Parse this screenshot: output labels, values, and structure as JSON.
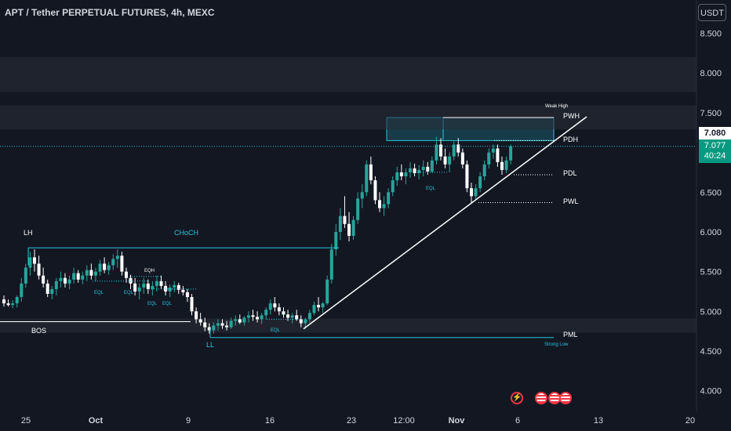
{
  "title": "APT / Tether PERPETUAL FUTURES, 4h, MEXC",
  "currency_button": "USDT",
  "price_tags": {
    "high": "7.080",
    "last": "7.077",
    "countdown": "40:24"
  },
  "colors": {
    "background": "#131722",
    "up": "#26a69a",
    "down": "#ffffff",
    "level": "#26c6da",
    "zone": "#26c6da",
    "text": "#d1d4dc"
  },
  "icons": [
    "flash-icon",
    "us-flag-icon",
    "us-flag-icon",
    "us-flag-icon"
  ],
  "chart_data": {
    "type": "candlestick",
    "title": "APT / Tether PERPETUAL FUTURES, 4h, MEXC",
    "x_ticks": [
      "25",
      "Oct",
      "9",
      "16",
      "23",
      "12:00",
      "Nov",
      "6",
      "13",
      "20"
    ],
    "y_ticks": [
      "8.500",
      "8.000",
      "7.500",
      "7.000",
      "6.500",
      "6.000",
      "5.500",
      "5.000",
      "4.500",
      "4.000"
    ],
    "ylim": [
      3.74,
      8.92
    ],
    "annotations": [
      "LH",
      "CHoCH",
      "BOS",
      "EQH",
      "EQL",
      "EQL",
      "EQL",
      "EQL",
      "EQL",
      "EQL",
      "LL",
      "Weak High",
      "PWH",
      "PDH",
      "PDL",
      "PWL",
      "PML",
      "Strong Low"
    ],
    "levels": [
      {
        "label": "LH / CHoCH",
        "value": 5.8
      },
      {
        "label": "BOS",
        "value": 4.87
      },
      {
        "label": "PWH",
        "value": 7.44
      },
      {
        "label": "PDH",
        "value": 7.15
      },
      {
        "label": "PDL",
        "value": 6.72
      },
      {
        "label": "PWL",
        "value": 6.37
      },
      {
        "label": "PML",
        "value": 4.67
      }
    ],
    "zones": [
      {
        "label": "supply",
        "low": 7.15,
        "high": 7.44
      },
      {
        "label": "band",
        "low": 7.29,
        "high": 7.59
      },
      {
        "label": "band",
        "low": 7.76,
        "high": 8.2
      },
      {
        "label": "band",
        "low": 4.73,
        "high": 4.91
      }
    ],
    "trendline": {
      "from": 4.78,
      "to": 7.45
    },
    "last_price": 7.077,
    "candles": [
      {
        "o": 5.15,
        "h": 5.2,
        "l": 5.06,
        "c": 5.1
      },
      {
        "o": 5.1,
        "h": 5.15,
        "l": 5.06,
        "c": 5.08
      },
      {
        "o": 5.08,
        "h": 5.14,
        "l": 5.04,
        "c": 5.1
      },
      {
        "o": 5.1,
        "h": 5.2,
        "l": 5.05,
        "c": 5.18
      },
      {
        "o": 5.18,
        "h": 5.42,
        "l": 5.12,
        "c": 5.35
      },
      {
        "o": 5.35,
        "h": 5.6,
        "l": 5.3,
        "c": 5.55
      },
      {
        "o": 5.55,
        "h": 5.75,
        "l": 5.45,
        "c": 5.68
      },
      {
        "o": 5.68,
        "h": 5.78,
        "l": 5.5,
        "c": 5.6
      },
      {
        "o": 5.6,
        "h": 5.7,
        "l": 5.4,
        "c": 5.45
      },
      {
        "o": 5.45,
        "h": 5.55,
        "l": 5.3,
        "c": 5.35
      },
      {
        "o": 5.35,
        "h": 5.4,
        "l": 5.18,
        "c": 5.22
      },
      {
        "o": 5.22,
        "h": 5.32,
        "l": 5.15,
        "c": 5.28
      },
      {
        "o": 5.28,
        "h": 5.42,
        "l": 5.2,
        "c": 5.38
      },
      {
        "o": 5.38,
        "h": 5.5,
        "l": 5.3,
        "c": 5.42
      },
      {
        "o": 5.42,
        "h": 5.48,
        "l": 5.3,
        "c": 5.35
      },
      {
        "o": 5.35,
        "h": 5.45,
        "l": 5.28,
        "c": 5.4
      },
      {
        "o": 5.4,
        "h": 5.55,
        "l": 5.35,
        "c": 5.48
      },
      {
        "o": 5.48,
        "h": 5.52,
        "l": 5.36,
        "c": 5.4
      },
      {
        "o": 5.4,
        "h": 5.5,
        "l": 5.34,
        "c": 5.45
      },
      {
        "o": 5.45,
        "h": 5.58,
        "l": 5.38,
        "c": 5.52
      },
      {
        "o": 5.52,
        "h": 5.6,
        "l": 5.4,
        "c": 5.45
      },
      {
        "o": 5.45,
        "h": 5.55,
        "l": 5.38,
        "c": 5.5
      },
      {
        "o": 5.5,
        "h": 5.65,
        "l": 5.45,
        "c": 5.6
      },
      {
        "o": 5.6,
        "h": 5.68,
        "l": 5.48,
        "c": 5.52
      },
      {
        "o": 5.52,
        "h": 5.62,
        "l": 5.46,
        "c": 5.58
      },
      {
        "o": 5.58,
        "h": 5.72,
        "l": 5.52,
        "c": 5.66
      },
      {
        "o": 5.66,
        "h": 5.78,
        "l": 5.55,
        "c": 5.7
      },
      {
        "o": 5.7,
        "h": 5.75,
        "l": 5.45,
        "c": 5.5
      },
      {
        "o": 5.5,
        "h": 5.55,
        "l": 5.36,
        "c": 5.42
      },
      {
        "o": 5.42,
        "h": 5.46,
        "l": 5.28,
        "c": 5.35
      },
      {
        "o": 5.35,
        "h": 5.42,
        "l": 5.2,
        "c": 5.25
      },
      {
        "o": 5.25,
        "h": 5.35,
        "l": 5.15,
        "c": 5.3
      },
      {
        "o": 5.3,
        "h": 5.42,
        "l": 5.22,
        "c": 5.35
      },
      {
        "o": 5.35,
        "h": 5.4,
        "l": 5.22,
        "c": 5.28
      },
      {
        "o": 5.28,
        "h": 5.38,
        "l": 5.2,
        "c": 5.32
      },
      {
        "o": 5.32,
        "h": 5.45,
        "l": 5.25,
        "c": 5.38
      },
      {
        "o": 5.38,
        "h": 5.45,
        "l": 5.28,
        "c": 5.32
      },
      {
        "o": 5.32,
        "h": 5.38,
        "l": 5.2,
        "c": 5.25
      },
      {
        "o": 5.25,
        "h": 5.34,
        "l": 5.18,
        "c": 5.3
      },
      {
        "o": 5.3,
        "h": 5.38,
        "l": 5.24,
        "c": 5.33
      },
      {
        "o": 5.33,
        "h": 5.36,
        "l": 5.22,
        "c": 5.27
      },
      {
        "o": 5.27,
        "h": 5.32,
        "l": 5.2,
        "c": 5.24
      },
      {
        "o": 5.24,
        "h": 5.28,
        "l": 5.12,
        "c": 5.18
      },
      {
        "o": 5.18,
        "h": 5.22,
        "l": 4.95,
        "c": 5.0
      },
      {
        "o": 5.0,
        "h": 5.05,
        "l": 4.85,
        "c": 4.9
      },
      {
        "o": 4.9,
        "h": 4.98,
        "l": 4.82,
        "c": 4.86
      },
      {
        "o": 4.86,
        "h": 4.92,
        "l": 4.75,
        "c": 4.8
      },
      {
        "o": 4.8,
        "h": 4.85,
        "l": 4.72,
        "c": 4.76
      },
      {
        "o": 4.76,
        "h": 4.86,
        "l": 4.72,
        "c": 4.82
      },
      {
        "o": 4.82,
        "h": 4.9,
        "l": 4.76,
        "c": 4.85
      },
      {
        "o": 4.85,
        "h": 4.9,
        "l": 4.78,
        "c": 4.82
      },
      {
        "o": 4.82,
        "h": 4.88,
        "l": 4.76,
        "c": 4.8
      },
      {
        "o": 4.8,
        "h": 4.92,
        "l": 4.78,
        "c": 4.88
      },
      {
        "o": 4.88,
        "h": 4.95,
        "l": 4.82,
        "c": 4.9
      },
      {
        "o": 4.9,
        "h": 4.96,
        "l": 4.84,
        "c": 4.86
      },
      {
        "o": 4.86,
        "h": 4.94,
        "l": 4.82,
        "c": 4.92
      },
      {
        "o": 4.92,
        "h": 5.0,
        "l": 4.86,
        "c": 4.95
      },
      {
        "o": 4.95,
        "h": 5.02,
        "l": 4.88,
        "c": 4.93
      },
      {
        "o": 4.93,
        "h": 5.0,
        "l": 4.86,
        "c": 4.9
      },
      {
        "o": 4.9,
        "h": 4.98,
        "l": 4.84,
        "c": 4.95
      },
      {
        "o": 4.95,
        "h": 5.05,
        "l": 4.9,
        "c": 5.02
      },
      {
        "o": 5.02,
        "h": 5.15,
        "l": 4.96,
        "c": 5.1
      },
      {
        "o": 5.1,
        "h": 5.18,
        "l": 5.0,
        "c": 5.05
      },
      {
        "o": 5.05,
        "h": 5.1,
        "l": 4.95,
        "c": 5.0
      },
      {
        "o": 5.0,
        "h": 5.05,
        "l": 4.92,
        "c": 4.96
      },
      {
        "o": 4.96,
        "h": 5.02,
        "l": 4.88,
        "c": 4.92
      },
      {
        "o": 4.92,
        "h": 4.98,
        "l": 4.85,
        "c": 4.95
      },
      {
        "o": 4.95,
        "h": 5.02,
        "l": 4.88,
        "c": 4.9
      },
      {
        "o": 4.9,
        "h": 4.95,
        "l": 4.8,
        "c": 4.85
      },
      {
        "o": 4.85,
        "h": 4.92,
        "l": 4.78,
        "c": 4.9
      },
      {
        "o": 4.9,
        "h": 5.02,
        "l": 4.86,
        "c": 4.98
      },
      {
        "o": 4.98,
        "h": 5.12,
        "l": 4.95,
        "c": 5.08
      },
      {
        "o": 5.08,
        "h": 5.18,
        "l": 5.0,
        "c": 5.05
      },
      {
        "o": 5.05,
        "h": 5.12,
        "l": 4.98,
        "c": 5.1
      },
      {
        "o": 5.1,
        "h": 5.45,
        "l": 5.08,
        "c": 5.4
      },
      {
        "o": 5.4,
        "h": 5.85,
        "l": 5.35,
        "c": 5.78
      },
      {
        "o": 5.78,
        "h": 6.1,
        "l": 5.7,
        "c": 6.0
      },
      {
        "o": 6.0,
        "h": 6.3,
        "l": 5.9,
        "c": 6.2
      },
      {
        "o": 6.2,
        "h": 6.45,
        "l": 6.05,
        "c": 6.1
      },
      {
        "o": 6.1,
        "h": 6.25,
        "l": 5.88,
        "c": 5.95
      },
      {
        "o": 5.95,
        "h": 6.2,
        "l": 5.9,
        "c": 6.15
      },
      {
        "o": 6.15,
        "h": 6.5,
        "l": 6.1,
        "c": 6.42
      },
      {
        "o": 6.42,
        "h": 6.6,
        "l": 6.3,
        "c": 6.5
      },
      {
        "o": 6.5,
        "h": 6.9,
        "l": 6.45,
        "c": 6.85
      },
      {
        "o": 6.85,
        "h": 6.95,
        "l": 6.6,
        "c": 6.65
      },
      {
        "o": 6.65,
        "h": 6.7,
        "l": 6.35,
        "c": 6.4
      },
      {
        "o": 6.4,
        "h": 6.5,
        "l": 6.25,
        "c": 6.3
      },
      {
        "o": 6.3,
        "h": 6.45,
        "l": 6.2,
        "c": 6.35
      },
      {
        "o": 6.35,
        "h": 6.55,
        "l": 6.3,
        "c": 6.5
      },
      {
        "o": 6.5,
        "h": 6.7,
        "l": 6.45,
        "c": 6.65
      },
      {
        "o": 6.65,
        "h": 6.82,
        "l": 6.58,
        "c": 6.75
      },
      {
        "o": 6.75,
        "h": 6.85,
        "l": 6.65,
        "c": 6.7
      },
      {
        "o": 6.7,
        "h": 6.8,
        "l": 6.6,
        "c": 6.75
      },
      {
        "o": 6.75,
        "h": 6.88,
        "l": 6.68,
        "c": 6.8
      },
      {
        "o": 6.8,
        "h": 6.86,
        "l": 6.7,
        "c": 6.74
      },
      {
        "o": 6.74,
        "h": 6.84,
        "l": 6.66,
        "c": 6.78
      },
      {
        "o": 6.78,
        "h": 6.9,
        "l": 6.7,
        "c": 6.82
      },
      {
        "o": 6.82,
        "h": 6.88,
        "l": 6.72,
        "c": 6.76
      },
      {
        "o": 6.76,
        "h": 6.95,
        "l": 6.74,
        "c": 6.9
      },
      {
        "o": 6.9,
        "h": 7.2,
        "l": 6.85,
        "c": 7.1
      },
      {
        "o": 7.1,
        "h": 7.18,
        "l": 6.9,
        "c": 6.95
      },
      {
        "o": 6.95,
        "h": 7.05,
        "l": 6.8,
        "c": 6.85
      },
      {
        "o": 6.85,
        "h": 7.0,
        "l": 6.75,
        "c": 6.95
      },
      {
        "o": 6.95,
        "h": 7.15,
        "l": 6.9,
        "c": 7.1
      },
      {
        "o": 7.1,
        "h": 7.18,
        "l": 6.95,
        "c": 7.0
      },
      {
        "o": 7.0,
        "h": 7.05,
        "l": 6.8,
        "c": 6.85
      },
      {
        "o": 6.85,
        "h": 6.9,
        "l": 6.5,
        "c": 6.55
      },
      {
        "o": 6.55,
        "h": 6.62,
        "l": 6.36,
        "c": 6.45
      },
      {
        "o": 6.45,
        "h": 6.6,
        "l": 6.4,
        "c": 6.55
      },
      {
        "o": 6.55,
        "h": 6.75,
        "l": 6.5,
        "c": 6.7
      },
      {
        "o": 6.7,
        "h": 6.9,
        "l": 6.65,
        "c": 6.85
      },
      {
        "o": 6.85,
        "h": 7.05,
        "l": 6.8,
        "c": 7.0
      },
      {
        "o": 7.0,
        "h": 7.1,
        "l": 6.92,
        "c": 7.05
      },
      {
        "o": 7.05,
        "h": 7.1,
        "l": 6.82,
        "c": 6.88
      },
      {
        "o": 6.88,
        "h": 6.95,
        "l": 6.72,
        "c": 6.78
      },
      {
        "o": 6.78,
        "h": 6.95,
        "l": 6.74,
        "c": 6.9
      },
      {
        "o": 6.9,
        "h": 7.1,
        "l": 6.85,
        "c": 7.077
      }
    ]
  }
}
